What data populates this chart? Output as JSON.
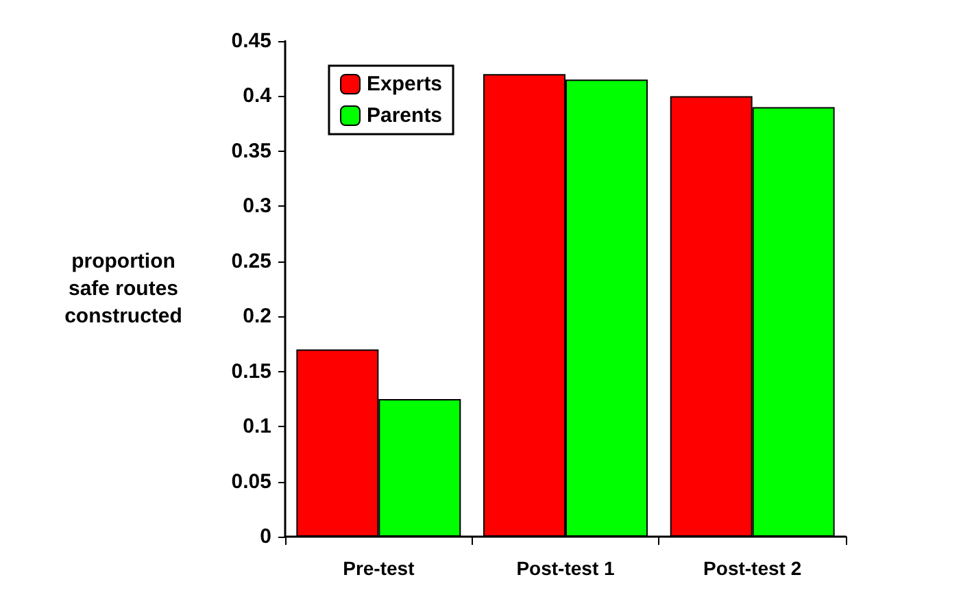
{
  "chart_data": {
    "type": "bar",
    "ylabel": "proportion safe routes constructed",
    "categories": [
      "Pre-test",
      "Post-test 1",
      "Post-test 2"
    ],
    "series": [
      {
        "name": "Experts",
        "color": "#ff0000",
        "values": [
          0.17,
          0.42,
          0.4
        ]
      },
      {
        "name": "Parents",
        "color": "#00ff00",
        "values": [
          0.125,
          0.415,
          0.39
        ]
      }
    ],
    "ylim": [
      0,
      0.45
    ],
    "yticks": [
      0,
      0.05,
      0.1,
      0.15,
      0.2,
      0.25,
      0.3,
      0.35,
      0.4,
      0.45
    ],
    "grid": false,
    "legend": "top left"
  }
}
